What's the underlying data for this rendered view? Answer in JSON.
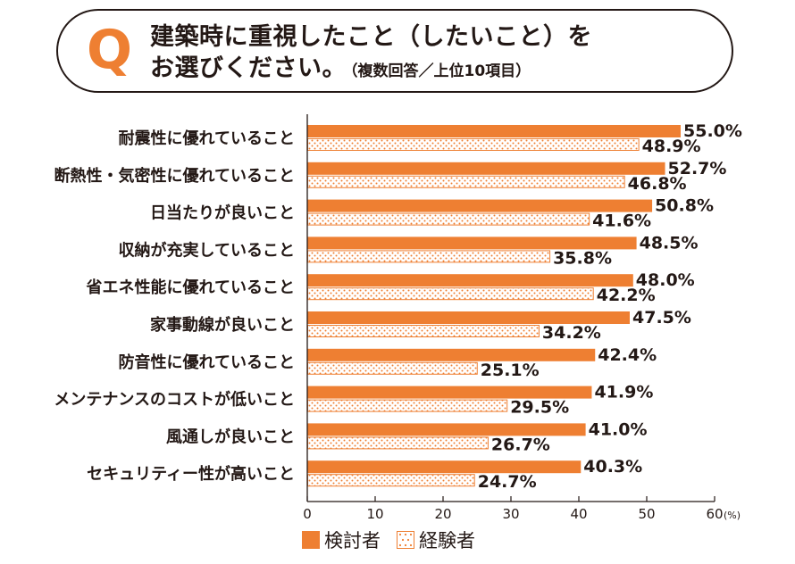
{
  "question": {
    "mark": "Q",
    "line1": "建築時に重視したこと（したいこと）を",
    "line2": "お選びください。",
    "note": "（複数回答／上位10項目）"
  },
  "legend": {
    "series1": "検討者",
    "series2": "経験者"
  },
  "colors": {
    "accent": "#ee7f32",
    "text": "#231815",
    "axis": "#231815"
  },
  "chart_data": {
    "type": "bar",
    "orientation": "horizontal",
    "categories": [
      "耐震性に優れていること",
      "断熱性・気密性に優れていること",
      "日当たりが良いこと",
      "収納が充実していること",
      "省エネ性能に優れていること",
      "家事動線が良いこと",
      "防音性に優れていること",
      "メンテナンスのコストが低いこと",
      "風通しが良いこと",
      "セキュリティー性が高いこと"
    ],
    "series": [
      {
        "name": "検討者",
        "style": "solid",
        "values": [
          55.0,
          52.7,
          50.8,
          48.5,
          48.0,
          47.5,
          42.4,
          41.9,
          41.0,
          40.3
        ],
        "labels": [
          "55.0%",
          "52.7%",
          "50.8%",
          "48.5%",
          "48.0%",
          "47.5%",
          "42.4%",
          "41.9%",
          "41.0%",
          "40.3%"
        ]
      },
      {
        "name": "経験者",
        "style": "dotted",
        "values": [
          48.9,
          46.8,
          41.6,
          35.8,
          42.2,
          34.2,
          25.1,
          29.5,
          26.7,
          24.7
        ],
        "labels": [
          "48.9%",
          "46.8%",
          "41.6%",
          "35.8%",
          "42.2%",
          "34.2%",
          "25.1%",
          "29.5%",
          "26.7%",
          "24.7%"
        ]
      }
    ],
    "x_ticks": [
      "0",
      "10",
      "20",
      "30",
      "40",
      "50",
      "60"
    ],
    "x_unit": "(%)",
    "xlim": [
      0,
      60
    ],
    "grid": false,
    "legend_position": "bottom"
  }
}
